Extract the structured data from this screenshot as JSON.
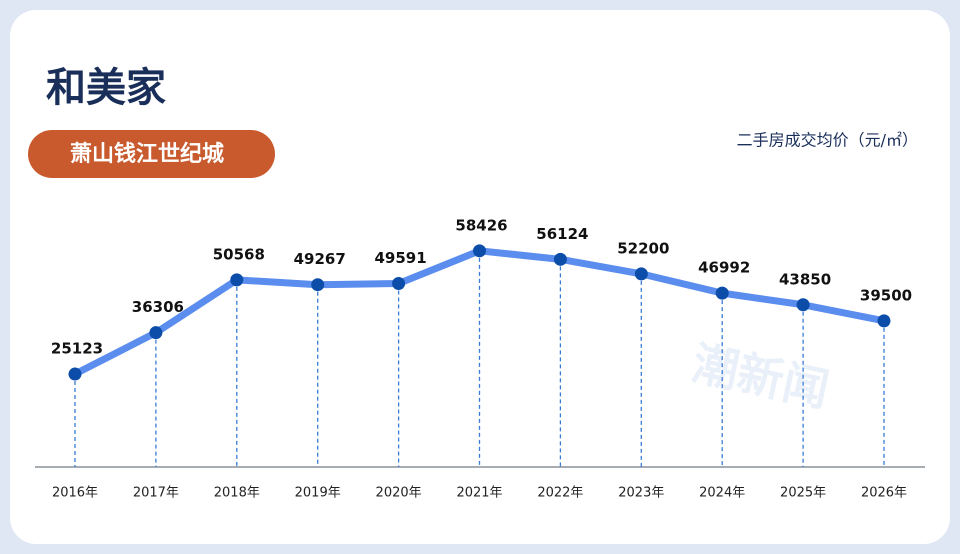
{
  "chart_data": {
    "type": "line",
    "title": "和美家",
    "subtitle": "萧山钱江世纪城",
    "y_label": "二手房成交均价（元/㎡）",
    "watermark": "潮新闻",
    "categories": [
      "2016年",
      "2017年",
      "2018年",
      "2019年",
      "2020年",
      "2021年",
      "2022年",
      "2023年",
      "2024年",
      "2025年",
      "2026年"
    ],
    "values": [
      25123,
      36306,
      50568,
      49267,
      49591,
      58426,
      56124,
      52200,
      46992,
      43850,
      39500
    ],
    "color": "#5b8def",
    "marker_color": "#0b4da8",
    "ylim": [
      0,
      60000
    ]
  }
}
